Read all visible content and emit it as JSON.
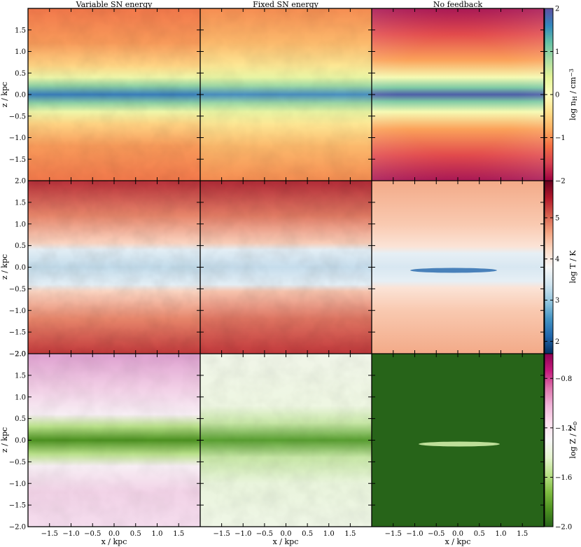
{
  "chart_data": {
    "type": "heatmap",
    "columns": [
      "Variable SN energy",
      "Fixed SN energy",
      "No feedback"
    ],
    "xlabel": "x / kpc",
    "ylabel": "z / kpc",
    "xlim": [
      -2.0,
      2.0
    ],
    "ylim": [
      -2.0,
      2.0
    ],
    "x_ticks": [
      "−1.5",
      "−1.0",
      "−0.5",
      "0.0",
      "0.5",
      "1.0",
      "1.5"
    ],
    "x_tick_values": [
      -1.5,
      -1.0,
      -0.5,
      0.0,
      0.5,
      1.0,
      1.5
    ],
    "y_ticks": [
      "−1.5",
      "−1.0",
      "−0.5",
      "0.0",
      "0.5",
      "1.0",
      "1.5"
    ],
    "y_tick_values": [
      -1.5,
      -1.0,
      -0.5,
      0.0,
      0.5,
      1.0,
      1.5
    ],
    "y_ticks_full": [
      "−2.0",
      "−1.5",
      "−1.0",
      "−0.5",
      "0.0",
      "0.5",
      "1.0",
      "1.5",
      "2.0"
    ],
    "y_tick_values_full": [
      -2.0,
      -1.5,
      -1.0,
      -0.5,
      0.0,
      0.5,
      1.0,
      1.5,
      2.0
    ],
    "rows": [
      {
        "quantity": "density",
        "colorbar_label": "log n_H / cm^-3",
        "colorbar_label_main": "log n",
        "colorbar_label_sub": "H",
        "colorbar_label_tail": " / cm",
        "colorbar_label_sup": "−3",
        "colormap": "Spectral",
        "range": [
          -2,
          2
        ],
        "ticks": [
          "−2",
          "−1",
          "0",
          "1",
          "2"
        ],
        "tick_values": [
          -2,
          -1,
          0,
          1,
          2
        ],
        "stops": [
          "#9e0142",
          "#d53e4f",
          "#f46d43",
          "#fdae61",
          "#fee08b",
          "#ffffbf",
          "#e6f598",
          "#abdda4",
          "#66c2a5",
          "#3288bd",
          "#5e4fa2"
        ]
      },
      {
        "quantity": "temperature",
        "colorbar_label": "log T / K",
        "colormap": "RdBu",
        "range": [
          1.7,
          5.9
        ],
        "ticks": [
          "2",
          "3",
          "4",
          "5"
        ],
        "tick_values": [
          2,
          3,
          4,
          5
        ],
        "stops": [
          "#053061",
          "#2166ac",
          "#4393c3",
          "#92c5de",
          "#d1e5f0",
          "#f7f7f7",
          "#fddbc7",
          "#f4a582",
          "#d6604d",
          "#b2182b",
          "#67001f"
        ]
      },
      {
        "quantity": "metallicity",
        "colorbar_label": "log Z / Z_sun",
        "colorbar_label_main": "log Z / Z",
        "colorbar_label_sub": "⊙",
        "colormap": "PiYG",
        "range": [
          -2.0,
          -0.6
        ],
        "ticks": [
          "−2.0",
          "−1.6",
          "−1.2",
          "−0.8"
        ],
        "tick_values": [
          -2.0,
          -1.6,
          -1.2,
          -0.8
        ],
        "stops": [
          "#276419",
          "#4d9221",
          "#7fbc41",
          "#b8e186",
          "#e6f5d0",
          "#f7f7f7",
          "#fde0ef",
          "#f1b6da",
          "#de77ae",
          "#c51b7d",
          "#8e0152"
        ]
      }
    ]
  }
}
